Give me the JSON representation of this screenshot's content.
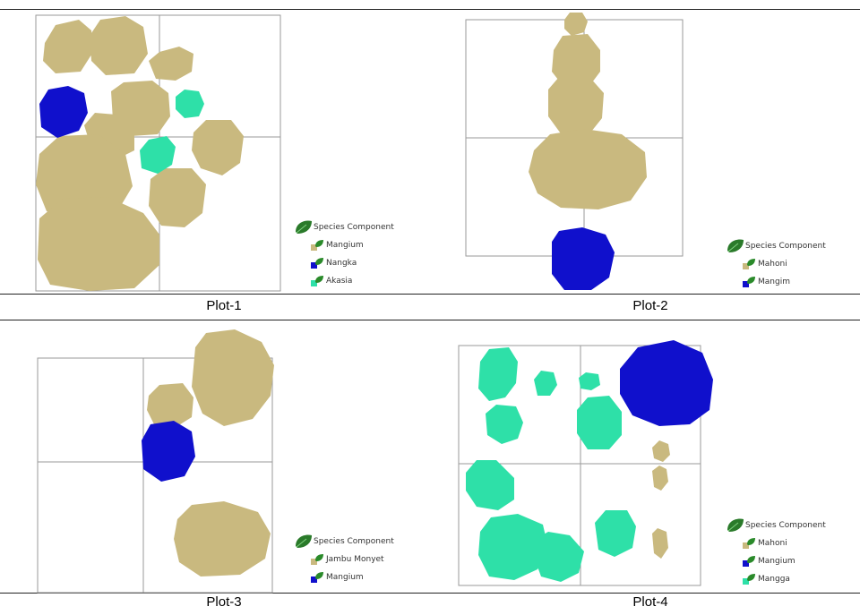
{
  "colors": {
    "tan": "#c9b97f",
    "blue": "#1010cc",
    "green": "#2ee0a8",
    "grid": "#9a9a9a"
  },
  "plots": [
    {
      "caption": "Plot-1",
      "legend": {
        "title": "Species Component",
        "items": [
          {
            "label": "Mangium",
            "color": "tan"
          },
          {
            "label": "Nangka",
            "color": "blue"
          },
          {
            "label": "Akasia",
            "color": "green"
          }
        ]
      }
    },
    {
      "caption": "Plot-2",
      "legend": {
        "title": "Species Component",
        "items": [
          {
            "label": "Mahoni",
            "color": "tan"
          },
          {
            "label": "Mangim",
            "color": "blue"
          }
        ]
      }
    },
    {
      "caption": "Plot-3",
      "legend": {
        "title": "Species Component",
        "items": [
          {
            "label": "Jambu Monyet",
            "color": "tan"
          },
          {
            "label": "Mangium",
            "color": "blue"
          }
        ]
      }
    },
    {
      "caption": "Plot-4",
      "legend": {
        "title": "Species Component",
        "items": [
          {
            "label": "Mahoni",
            "color": "tan"
          },
          {
            "label": "Mangium",
            "color": "blue"
          },
          {
            "label": "Mangga",
            "color": "green"
          }
        ]
      }
    }
  ]
}
